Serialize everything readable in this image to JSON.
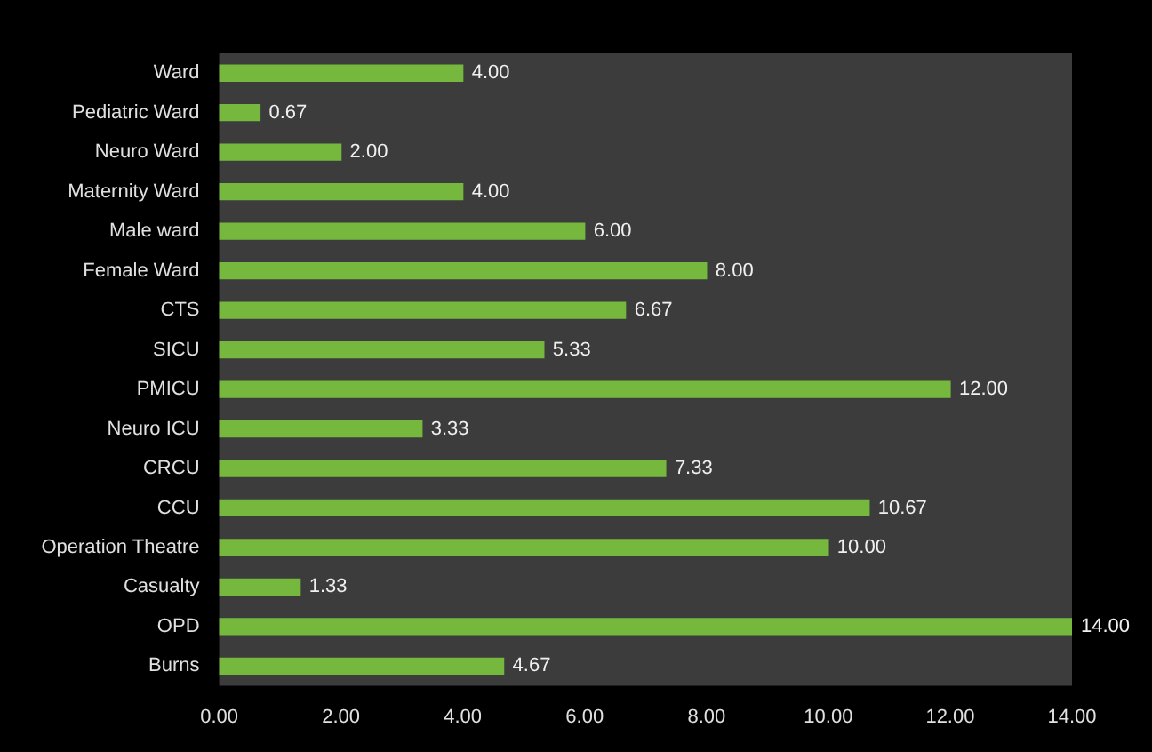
{
  "chart_data": {
    "type": "bar",
    "orientation": "horizontal",
    "categories": [
      "Ward",
      "Pediatric Ward",
      "Neuro Ward",
      "Maternity Ward",
      "Male ward",
      "Female Ward",
      "CTS",
      "SICU",
      "PMICU",
      "Neuro ICU",
      "CRCU",
      "CCU",
      "Operation Theatre",
      "Casualty",
      "OPD",
      "Burns"
    ],
    "values": [
      4,
      0.67,
      2,
      4,
      6,
      8,
      6.67,
      5.33,
      12,
      3.33,
      7.33,
      10.67,
      10,
      1.33,
      14,
      4.67
    ],
    "value_labels": [
      "4.00",
      "0.67",
      "2.00",
      "4.00",
      "6.00",
      "8.00",
      "6.67",
      "5.33",
      "12.00",
      "3.33",
      "7.33",
      "10.67",
      "10.00",
      "1.33",
      "14.00",
      "4.67"
    ],
    "color": "#76b83e",
    "xlim": [
      0,
      14
    ],
    "xticks": [
      {
        "value": 0,
        "label": "0.00"
      },
      {
        "value": 2,
        "label": "2.00"
      },
      {
        "value": 4,
        "label": "4.00"
      },
      {
        "value": 6,
        "label": "6.00"
      },
      {
        "value": 8,
        "label": "8.00"
      },
      {
        "value": 10,
        "label": "10.00"
      },
      {
        "value": 12,
        "label": "12.00"
      },
      {
        "value": 14,
        "label": "14.00"
      }
    ],
    "grid": false,
    "legend": false
  }
}
